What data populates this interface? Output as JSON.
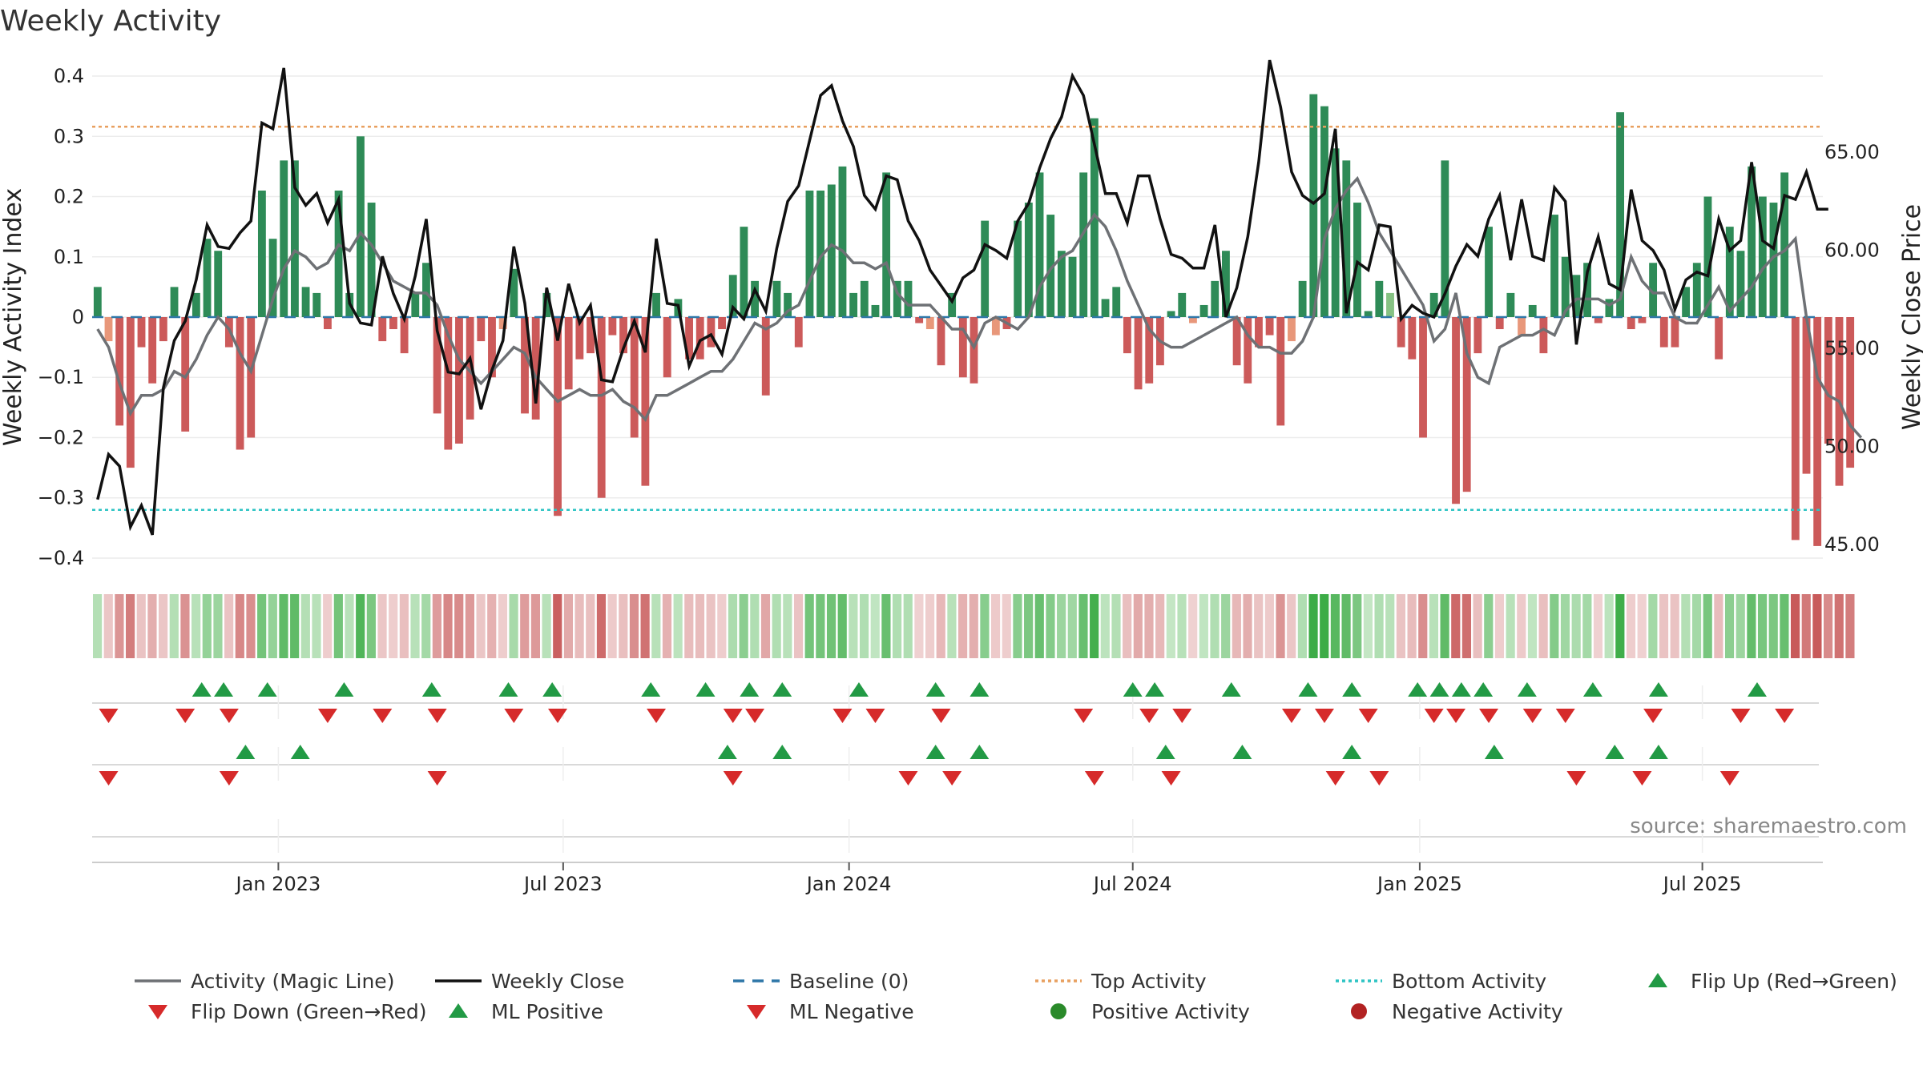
{
  "chart_data": {
    "type": "bar",
    "title": "Weekly Activity",
    "source": "source: sharemaestro.com",
    "ylabel": "Weekly Activity Index",
    "y2label": "Weekly Close Price",
    "ylim": [
      -0.42,
      0.42
    ],
    "y2lim": [
      43.7,
      69.5
    ],
    "yticks": [
      0.4,
      0.3,
      0.2,
      0.1,
      0,
      -0.1,
      -0.2,
      -0.3,
      -0.4
    ],
    "ytick_labels": [
      "0.4",
      "0.3",
      "0.2",
      "0.1",
      "0",
      "−0.1",
      "−0.2",
      "−0.3",
      "−0.4"
    ],
    "y2ticks": [
      65,
      60,
      55,
      50,
      45
    ],
    "y2tick_labels": [
      "65.00",
      "60.00",
      "55.00",
      "50.00",
      "45.00"
    ],
    "xticks": [
      {
        "week": 16.5,
        "label": "Jan 2023"
      },
      {
        "week": 42.5,
        "label": "Jul 2023"
      },
      {
        "week": 68.6,
        "label": "Jan 2024"
      },
      {
        "week": 94.5,
        "label": "Jul 2024"
      },
      {
        "week": 120.7,
        "label": "Jan 2025"
      },
      {
        "week": 146.5,
        "label": "Jul 2025"
      }
    ],
    "top_activity": 0.316,
    "bottom_activity": -0.32,
    "weeks": 158,
    "activity": [
      0.05,
      -0.04,
      -0.18,
      -0.25,
      -0.05,
      -0.11,
      -0.04,
      0.05,
      -0.19,
      0.04,
      0.13,
      0.11,
      -0.05,
      -0.22,
      -0.2,
      0.21,
      0.13,
      0.26,
      0.26,
      0.05,
      0.04,
      -0.02,
      0.21,
      0.04,
      0.3,
      0.19,
      -0.04,
      -0.02,
      -0.06,
      0.04,
      0.09,
      -0.16,
      -0.22,
      -0.21,
      -0.17,
      -0.04,
      -0.1,
      -0.02,
      0.08,
      -0.16,
      -0.17,
      0.04,
      -0.33,
      -0.12,
      -0.07,
      -0.06,
      -0.3,
      -0.03,
      -0.06,
      -0.2,
      -0.28,
      0.04,
      -0.1,
      0.03,
      -0.07,
      -0.07,
      -0.05,
      -0.02,
      0.07,
      0.15,
      0.06,
      -0.13,
      0.06,
      0.04,
      -0.05,
      0.21,
      0.21,
      0.22,
      0.25,
      0.04,
      0.06,
      0.02,
      0.24,
      0.06,
      0.06,
      -0.01,
      -0.02,
      -0.08,
      0.04,
      -0.1,
      -0.11,
      0.16,
      -0.03,
      -0.02,
      0.16,
      0.19,
      0.24,
      0.17,
      0.11,
      0.1,
      0.24,
      0.33,
      0.03,
      0.05,
      -0.06,
      -0.12,
      -0.11,
      -0.08,
      0.01,
      0.04,
      -0.01,
      0.02,
      0.06,
      0.11,
      -0.08,
      -0.11,
      -0.05,
      -0.03,
      -0.18,
      -0.04,
      0.06,
      0.37,
      0.35,
      0.28,
      0.26,
      0.19,
      0.01,
      0.06,
      0.04,
      -0.05,
      -0.07,
      -0.2,
      0.04,
      0.26,
      -0.31,
      -0.29,
      -0.06,
      0.15,
      -0.02,
      0.04,
      -0.03,
      0.02,
      -0.06,
      0.17,
      0.1,
      0.07,
      0.09,
      -0.01,
      0.03,
      0.34,
      -0.02,
      -0.01,
      0.09,
      -0.05,
      -0.05,
      0.05,
      0.09,
      0.2,
      -0.07,
      0.15,
      0.11,
      0.25,
      0.2,
      0.19,
      0.24,
      -0.37,
      -0.26,
      -0.38,
      -0.21,
      -0.28,
      -0.25
    ],
    "magic_line": [
      -0.02,
      -0.05,
      -0.11,
      -0.16,
      -0.13,
      -0.13,
      -0.12,
      -0.09,
      -0.1,
      -0.07,
      -0.03,
      0,
      -0.02,
      -0.06,
      -0.09,
      -0.03,
      0.03,
      0.08,
      0.11,
      0.1,
      0.08,
      0.09,
      0.12,
      0.11,
      0.14,
      0.12,
      0.09,
      0.06,
      0.05,
      0.04,
      0.04,
      0.02,
      -0.03,
      -0.07,
      -0.09,
      -0.11,
      -0.09,
      -0.07,
      -0.05,
      -0.06,
      -0.1,
      -0.12,
      -0.14,
      -0.13,
      -0.12,
      -0.13,
      -0.13,
      -0.12,
      -0.14,
      -0.15,
      -0.17,
      -0.13,
      -0.13,
      -0.12,
      -0.11,
      -0.1,
      -0.09,
      -0.09,
      -0.07,
      -0.04,
      -0.01,
      -0.02,
      -0.01,
      0.01,
      0.02,
      0.06,
      0.1,
      0.12,
      0.11,
      0.09,
      0.09,
      0.08,
      0.09,
      0.04,
      0.02,
      0.02,
      0.02,
      0,
      -0.02,
      -0.02,
      -0.05,
      -0.01,
      0,
      -0.01,
      -0.02,
      0,
      0.05,
      0.08,
      0.1,
      0.11,
      0.14,
      0.17,
      0.15,
      0.11,
      0.06,
      0.02,
      -0.02,
      -0.04,
      -0.05,
      -0.05,
      -0.04,
      -0.03,
      -0.02,
      -0.01,
      0,
      -0.03,
      -0.05,
      -0.05,
      -0.06,
      -0.06,
      -0.04,
      0,
      0.13,
      0.18,
      0.21,
      0.23,
      0.19,
      0.14,
      0.11,
      0.08,
      0.05,
      0.02,
      -0.04,
      -0.02,
      0.04,
      -0.06,
      -0.1,
      -0.11,
      -0.05,
      -0.04,
      -0.03,
      -0.03,
      -0.02,
      -0.03,
      0.01,
      0.03,
      0.03,
      0.03,
      0.02,
      0.03,
      0.1,
      0.06,
      0.04,
      0.04,
      0,
      -0.01,
      -0.01,
      0.02,
      0.05,
      0.01,
      0.03,
      0.05,
      0.08,
      0.1,
      0.11,
      0.13,
      0,
      -0.1,
      -0.13,
      -0.14,
      -0.18,
      -0.2
    ],
    "close": [
      47.3,
      49.6,
      49,
      45.9,
      47,
      45.5,
      53,
      55.4,
      56.4,
      58.5,
      61.3,
      60.2,
      60.1,
      60.9,
      61.5,
      66.5,
      66.2,
      69.3,
      63.2,
      62.3,
      62.9,
      61.4,
      62.6,
      57.3,
      56.3,
      56.2,
      59.7,
      57.8,
      56.5,
      58.7,
      61.6,
      55.9,
      53.8,
      53.7,
      54.5,
      51.9,
      53.9,
      55.4,
      60.2,
      57.3,
      52.2,
      58.1,
      55.4,
      58.3,
      56.3,
      57.2,
      53.4,
      53.3,
      55,
      56.4,
      54.8,
      60.6,
      57.3,
      57.2,
      54.1,
      55.4,
      55.7,
      54.7,
      57.1,
      56.5,
      58,
      56.9,
      60.1,
      62.5,
      63.3,
      65.6,
      67.9,
      68.4,
      66.6,
      65.3,
      62.8,
      62.1,
      63.8,
      63.6,
      61.5,
      60.5,
      59,
      58.2,
      57.4,
      58.6,
      59,
      60.3,
      60,
      59.6,
      61.5,
      62.4,
      64.2,
      65.7,
      66.8,
      68.9,
      67.9,
      65.4,
      62.9,
      62.9,
      61.4,
      63.8,
      63.8,
      61.6,
      59.8,
      59.6,
      59.1,
      59.1,
      61.3,
      56.6,
      58.1,
      60.7,
      64.5,
      69.7,
      67.3,
      64,
      62.8,
      62.4,
      62.9,
      66.2,
      56.8,
      59.4,
      59,
      61.3,
      61.2,
      56.5,
      57.2,
      56.8,
      56.6,
      57.8,
      59.2,
      60.3,
      59.7,
      61.6,
      62.8,
      59.5,
      62.6,
      59.7,
      59.5,
      63.2,
      62.5,
      55.2,
      58.9,
      60.7,
      58.3,
      58,
      63.1,
      60.5,
      60,
      59,
      57,
      58.5,
      58.9,
      58.7,
      61.6,
      60,
      60.5,
      64.5,
      60.5,
      60.1,
      62.8,
      62.6,
      64,
      62.1,
      62.1
    ],
    "heat_strip_source": "activity",
    "marker_rows": {
      "flip_up": [
        9.5,
        11.5,
        15.5,
        22.5,
        30.5,
        37.5,
        41.5,
        50.5,
        55.5,
        59.5,
        62.5,
        69.5,
        76.5,
        80.5,
        94.5,
        96.5,
        103.5,
        110.5,
        114.5,
        120.5,
        122.5,
        124.5,
        126.5,
        130.5,
        136.5,
        142.5,
        151.5
      ],
      "flip_down": [
        1,
        8,
        12,
        21,
        26,
        31,
        38,
        42,
        51,
        58,
        60,
        68,
        71,
        77,
        90,
        96,
        99,
        109,
        112,
        116,
        122,
        124,
        127,
        131,
        134,
        142,
        150,
        154
      ],
      "ml_positive": [
        13.5,
        18.5,
        57.5,
        62.5,
        76.5,
        80.5,
        97.5,
        104.5,
        114.5,
        127.5,
        138.5,
        142.5
      ],
      "ml_negative": [
        1,
        12,
        31,
        58,
        74,
        78,
        91,
        98,
        113,
        117,
        135,
        141,
        149
      ]
    },
    "legend": [
      {
        "label": "Activity (Magic Line)",
        "kind": "line",
        "color": "#6e7175",
        "dash": ""
      },
      {
        "label": "Weekly Close",
        "kind": "line",
        "color": "#111111",
        "dash": ""
      },
      {
        "label": "Baseline (0)",
        "kind": "line",
        "color": "#2f77a8",
        "dash": "14 10"
      },
      {
        "label": "Top Activity",
        "kind": "line",
        "color": "#e8a060",
        "dash": "4 4"
      },
      {
        "label": "Bottom Activity",
        "kind": "line",
        "color": "#2ec4c4",
        "dash": "4 4"
      },
      {
        "label": "Flip Up (Red→Green)",
        "kind": "tri-up",
        "color": "#229a45"
      },
      {
        "label": "Flip Down (Green→Red)",
        "kind": "tri-down",
        "color": "#d62a2a"
      },
      {
        "label": "ML Positive",
        "kind": "tri-up",
        "color": "#229a45"
      },
      {
        "label": "ML Negative",
        "kind": "tri-down",
        "color": "#d62a2a"
      },
      {
        "label": "Positive Activity",
        "kind": "dot",
        "color": "#2a8a2a"
      },
      {
        "label": "Negative Activity",
        "kind": "dot",
        "color": "#b22222"
      }
    ],
    "colors": {
      "pos_strong": "#2e8b57",
      "pos_light": "#86c283",
      "neg_strong": "#cc5a5a",
      "neg_light": "#e8977a",
      "grid": "#ececec"
    }
  }
}
